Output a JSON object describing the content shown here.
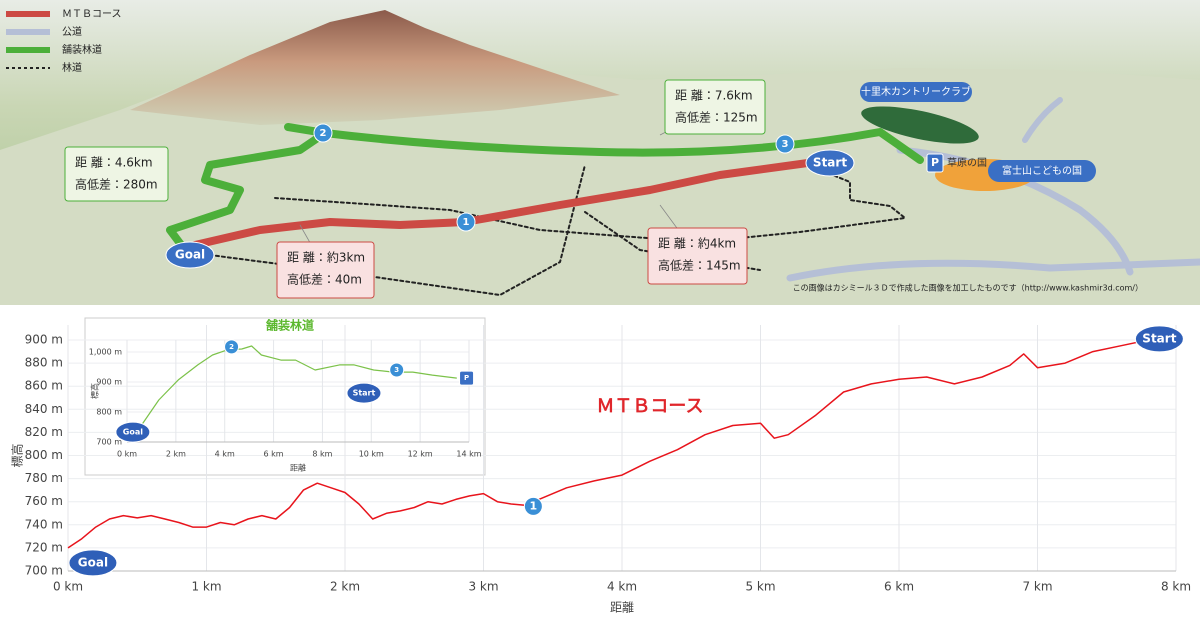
{
  "map": {
    "legend": [
      {
        "name": "ＭＴＢコース",
        "color": "#cc4a44",
        "style": "solid"
      },
      {
        "name": "公道",
        "color": "#b5bfd6",
        "style": "solid"
      },
      {
        "name": "舗装林道",
        "color": "#4caf3a",
        "style": "solid"
      },
      {
        "name": "林道",
        "color": "#222222",
        "style": "dotted"
      }
    ],
    "callouts": [
      {
        "lines": [
          "距 離：4.6km",
          "高低差：280m"
        ],
        "color": "#4caf3a"
      },
      {
        "lines": [
          "距 離：7.6km",
          "高低差：125m"
        ],
        "color": "#4caf3a"
      },
      {
        "lines": [
          "距 離：約3km",
          "高低差：40m"
        ],
        "color": "#cc4a44"
      },
      {
        "lines": [
          "距 離：約4km",
          "高低差：145m"
        ],
        "color": "#cc4a44"
      }
    ],
    "markers": [
      "Goal",
      "1",
      "2",
      "3",
      "Start"
    ],
    "places": {
      "country_club": "十里木カントリークラブ",
      "parking": "P",
      "grassland": "草原の国",
      "kids_land": "富士山こどもの国"
    },
    "credit": "この画像はカシミール３Ｄで作成した画像を加工したものです（http://www.kashmir3d.com/）"
  },
  "chart_data": [
    {
      "type": "line",
      "title": "ＭＴＢコース",
      "title_color": "#e0262b",
      "xlabel": "距離",
      "ylabel": "標高",
      "x": [
        0,
        0.1,
        0.2,
        0.3,
        0.4,
        0.5,
        0.6,
        0.7,
        0.8,
        0.9,
        1.0,
        1.1,
        1.2,
        1.3,
        1.4,
        1.5,
        1.6,
        1.7,
        1.8,
        1.9,
        2.0,
        2.1,
        2.2,
        2.3,
        2.4,
        2.5,
        2.6,
        2.7,
        2.8,
        2.9,
        3.0,
        3.1,
        3.2,
        3.3,
        3.4,
        3.6,
        3.8,
        4.0,
        4.2,
        4.4,
        4.6,
        4.8,
        5.0,
        5.1,
        5.2,
        5.4,
        5.6,
        5.8,
        6.0,
        6.2,
        6.4,
        6.6,
        6.8,
        6.9,
        7.0,
        7.2,
        7.4,
        7.6,
        7.8
      ],
      "series": [
        {
          "color": "#e8141c",
          "values": [
            720,
            728,
            738,
            745,
            748,
            746,
            748,
            745,
            742,
            738,
            738,
            742,
            740,
            745,
            748,
            745,
            755,
            770,
            776,
            772,
            768,
            758,
            745,
            750,
            752,
            755,
            760,
            758,
            762,
            765,
            767,
            760,
            758,
            757,
            762,
            772,
            778,
            783,
            795,
            805,
            818,
            826,
            828,
            815,
            818,
            835,
            855,
            862,
            866,
            868,
            862,
            868,
            878,
            888,
            876,
            880,
            890,
            895,
            900
          ]
        }
      ],
      "xlim": [
        0,
        8
      ],
      "xticks": [
        {
          "value": 0,
          "label": "0 km"
        },
        {
          "value": 1,
          "label": "1 km"
        },
        {
          "value": 2,
          "label": "2 km"
        },
        {
          "value": 3,
          "label": "3 km"
        },
        {
          "value": 4,
          "label": "4 km"
        },
        {
          "value": 5,
          "label": "5 km"
        },
        {
          "value": 6,
          "label": "6 km"
        },
        {
          "value": 7,
          "label": "7 km"
        },
        {
          "value": 8,
          "label": "8 km"
        }
      ],
      "ylim": [
        700,
        900
      ],
      "yticks": [
        {
          "value": 700,
          "label": "700 m"
        },
        {
          "value": 720,
          "label": "720 m"
        },
        {
          "value": 740,
          "label": "740 m"
        },
        {
          "value": 760,
          "label": "760 m"
        },
        {
          "value": 780,
          "label": "780 m"
        },
        {
          "value": 800,
          "label": "800 m"
        },
        {
          "value": 820,
          "label": "820 m"
        },
        {
          "value": 840,
          "label": "840 m"
        },
        {
          "value": 860,
          "label": "860 m"
        },
        {
          "value": 880,
          "label": "880 m"
        },
        {
          "value": 900,
          "label": "900 m"
        }
      ],
      "grid": true,
      "annotations": [
        {
          "text": "Goal",
          "x": 0.18,
          "y": 707,
          "marker": "ellipse"
        },
        {
          "text": "1",
          "x": 3.36,
          "y": 756,
          "marker": "circle"
        },
        {
          "text": "Start",
          "x": 7.88,
          "y": 901,
          "marker": "ellipse"
        }
      ]
    },
    {
      "type": "line",
      "title": "舗装林道",
      "title_color": "#5cb82e",
      "xlabel": "距離",
      "ylabel": "標高",
      "x": [
        0.6,
        1.3,
        2.1,
        2.9,
        3.5,
        4.1,
        4.7,
        5.1,
        5.5,
        6.3,
        6.9,
        7.7,
        8.7,
        9.3,
        10.1,
        10.9,
        11.7,
        12.5,
        13.5
      ],
      "series": [
        {
          "color": "#7cc24a",
          "values": [
            757,
            840,
            907,
            957,
            990,
            1007,
            1010,
            1020,
            990,
            973,
            973,
            940,
            957,
            957,
            940,
            933,
            933,
            923,
            913
          ]
        }
      ],
      "xlim": [
        0,
        14
      ],
      "xticks": [
        {
          "value": 0,
          "label": "0 km"
        },
        {
          "value": 2,
          "label": "2 km"
        },
        {
          "value": 4,
          "label": "4 km"
        },
        {
          "value": 6,
          "label": "6 km"
        },
        {
          "value": 8,
          "label": "8 km"
        },
        {
          "value": 10,
          "label": "10 km"
        },
        {
          "value": 12,
          "label": "12 km"
        },
        {
          "value": 14,
          "label": "14 km"
        }
      ],
      "ylim": [
        700,
        1040
      ],
      "yticks": [
        {
          "value": 700,
          "label": "700 m"
        },
        {
          "value": 800,
          "label": "800 m"
        },
        {
          "value": 900,
          "label": "900 m"
        },
        {
          "value": 1000,
          "label": "1,000 m"
        }
      ],
      "grid": true,
      "annotations": [
        {
          "text": "Goal",
          "x": 0.24,
          "y": 733,
          "marker": "ellipse"
        },
        {
          "text": "2",
          "x": 4.28,
          "y": 1017,
          "marker": "circle"
        },
        {
          "text": "Start",
          "x": 9.7,
          "y": 863,
          "marker": "ellipse"
        },
        {
          "text": "3",
          "x": 11.04,
          "y": 940,
          "marker": "circle"
        },
        {
          "text": "P",
          "x": 13.9,
          "y": 913,
          "marker": "square"
        }
      ]
    }
  ]
}
